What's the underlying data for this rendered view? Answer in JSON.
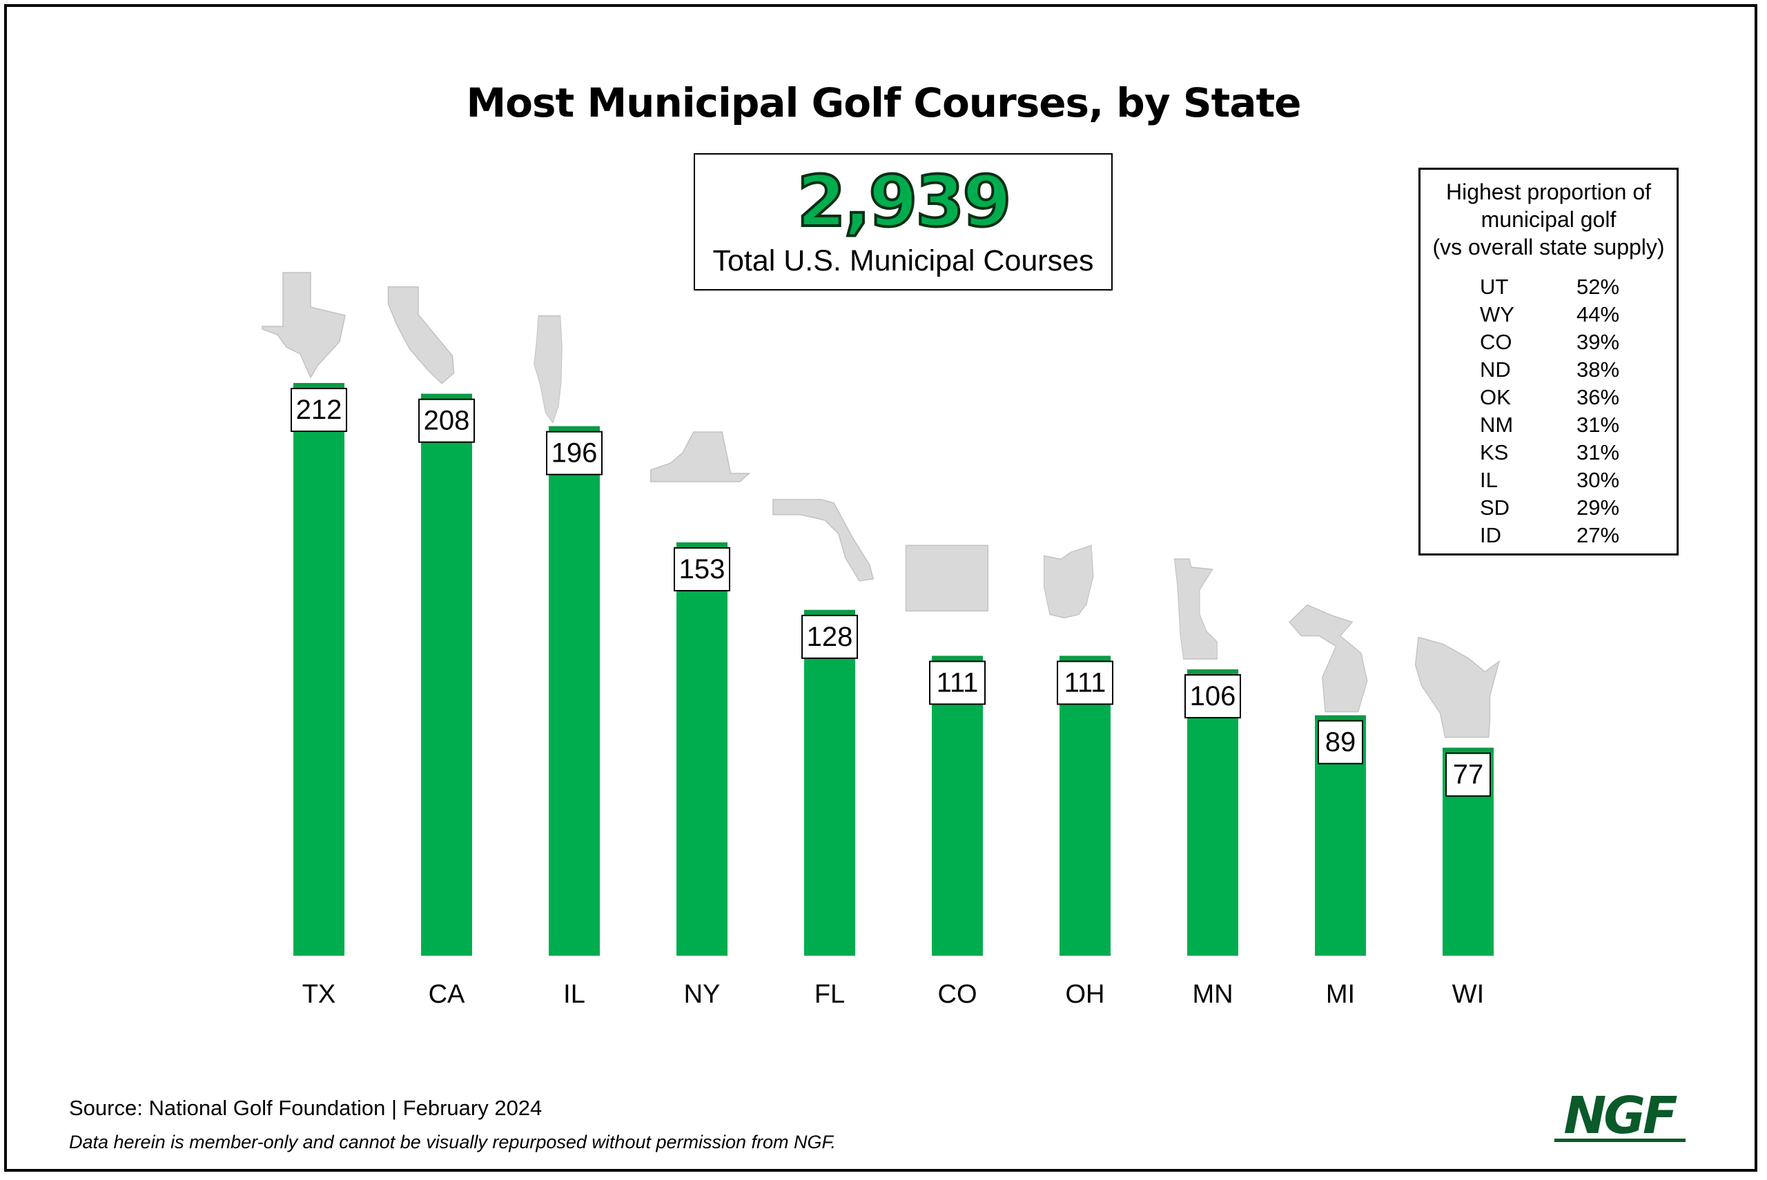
{
  "total": {
    "value": "2,939",
    "label": "Total U.S. Municipal Courses"
  },
  "proportion_table": {
    "title_lines": [
      "Highest proportion of",
      "municipal golf",
      "(vs overall state supply)"
    ],
    "rows": [
      {
        "state": "UT",
        "pct": "52%"
      },
      {
        "state": "WY",
        "pct": "44%"
      },
      {
        "state": "CO",
        "pct": "39%"
      },
      {
        "state": "ND",
        "pct": "38%"
      },
      {
        "state": "OK",
        "pct": "36%"
      },
      {
        "state": "NM",
        "pct": "31%"
      },
      {
        "state": "KS",
        "pct": "31%"
      },
      {
        "state": "IL",
        "pct": "30%"
      },
      {
        "state": "SD",
        "pct": "29%"
      },
      {
        "state": "ID",
        "pct": "27%"
      }
    ]
  },
  "footer": {
    "source": "Source: National Golf Foundation | February 2024",
    "note": "Data herein is member-only and cannot be visually repurposed without permission from NGF.",
    "logo_text": "NGF"
  },
  "colors": {
    "bar": "#00ad4e",
    "bar_top": "#0c9a45",
    "total_text": "#00ad4e",
    "logo": "#0b5a2a",
    "state_shape": "#d9d9d9"
  },
  "chart_data": {
    "type": "bar",
    "title": "Most Municipal Golf Courses, by State",
    "categories": [
      "TX",
      "CA",
      "IL",
      "NY",
      "FL",
      "CO",
      "OH",
      "MN",
      "MI",
      "WI"
    ],
    "values": [
      212,
      208,
      196,
      153,
      128,
      111,
      111,
      106,
      89,
      77
    ],
    "data_labels": [
      "212",
      "208",
      "196",
      "153",
      "128",
      "111",
      "111",
      "106",
      "89",
      "77"
    ],
    "state_shape_icons": [
      "texas-shape-icon",
      "california-shape-icon",
      "illinois-shape-icon",
      "new-york-shape-icon",
      "florida-shape-icon",
      "colorado-shape-icon",
      "ohio-shape-icon",
      "minnesota-shape-icon",
      "michigan-shape-icon",
      "wisconsin-shape-icon"
    ],
    "ylim": [
      0,
      212
    ],
    "grid": false,
    "legend": "none"
  }
}
